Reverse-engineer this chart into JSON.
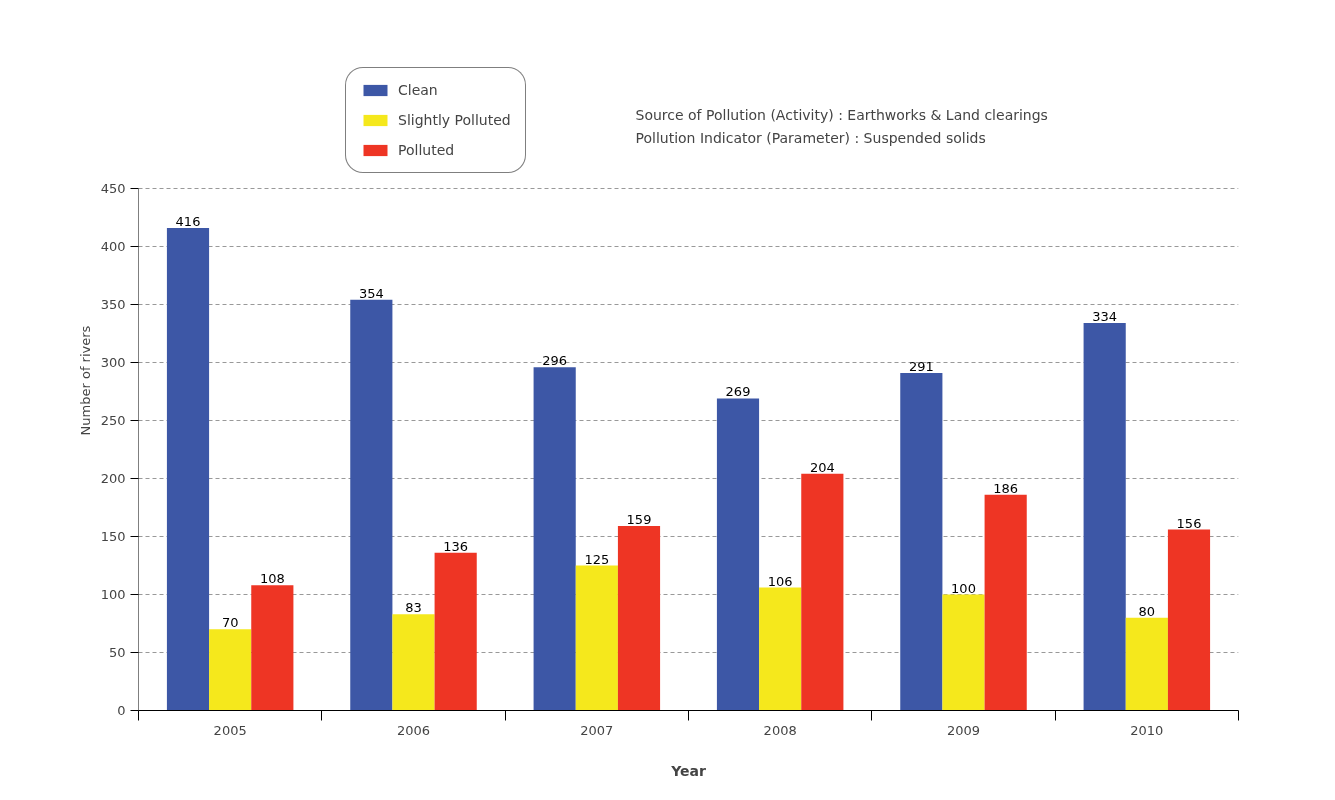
{
  "chart_data": {
    "type": "bar",
    "xlabel": "Year",
    "ylabel": "Number of rivers",
    "categories": [
      "2005",
      "2006",
      "2007",
      "2008",
      "2009",
      "2010"
    ],
    "series": [
      {
        "name": "Clean",
        "color": "#3d57a6",
        "values": [
          416,
          354,
          296,
          269,
          291,
          334
        ]
      },
      {
        "name": "Slightly Polluted",
        "color": "#f5e81c",
        "values": [
          70,
          83,
          125,
          106,
          100,
          80
        ]
      },
      {
        "name": "Polluted",
        "color": "#ee3524",
        "values": [
          108,
          136,
          159,
          204,
          186,
          156
        ]
      }
    ],
    "ylim": [
      0,
      450
    ],
    "yticks": [
      0,
      50,
      100,
      150,
      200,
      250,
      300,
      350,
      400,
      450
    ],
    "grid": "y",
    "legend": "top left",
    "data_labels": true,
    "annotations": [
      "Source of Pollution (Activity) : Earthworks & Land clearings",
      "Pollution Indicator (Parameter) : Suspended solids"
    ]
  }
}
